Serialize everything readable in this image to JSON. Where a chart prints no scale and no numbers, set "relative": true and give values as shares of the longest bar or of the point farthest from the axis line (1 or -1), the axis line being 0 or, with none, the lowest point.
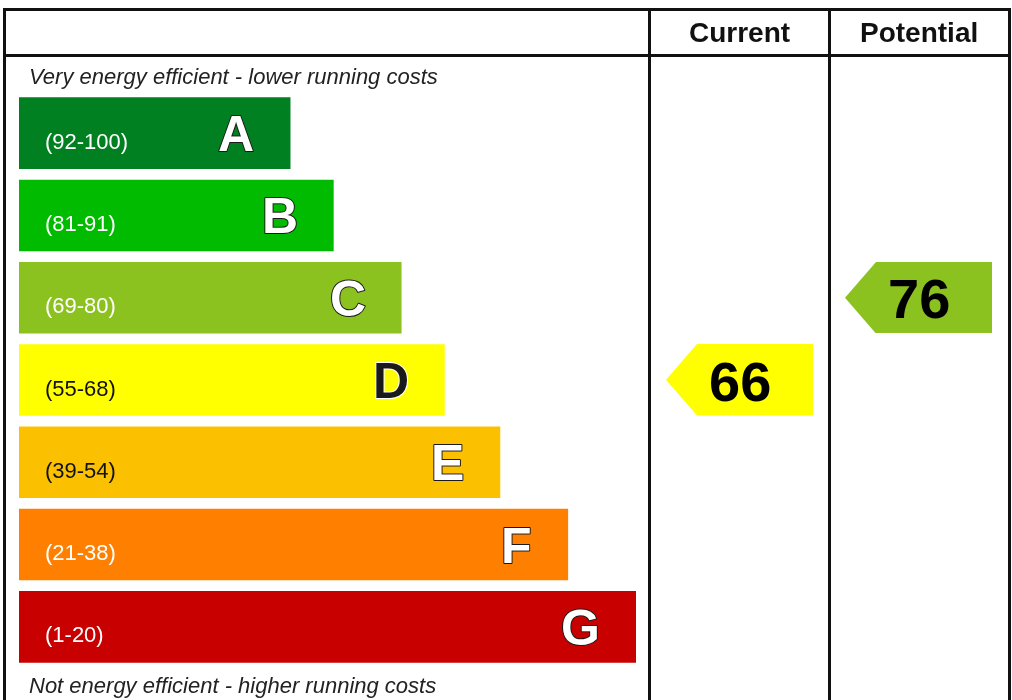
{
  "chart_data": {
    "type": "bar",
    "orientation": "horizontal",
    "relative": true,
    "categories": [
      "A",
      "B",
      "C",
      "D",
      "E",
      "F",
      "G"
    ],
    "values": [
      0.44,
      0.51,
      0.62,
      0.69,
      0.78,
      0.89,
      1
    ],
    "colors": [
      "#008020",
      "#00bb00",
      "#8cc21f",
      "#ffff00",
      "#fbc100",
      "#ff8000",
      "#c80000"
    ],
    "annotations": [
      "Very energy efficient - lower running costs",
      "(92-100)",
      "(81-91)",
      "(69-80)",
      "(55-68)",
      "(39-54)",
      "(21-38)",
      "(1-20)",
      "Not energy efficient - higher running costs",
      "Current",
      "Potential",
      "66",
      "76"
    ]
  }
}
